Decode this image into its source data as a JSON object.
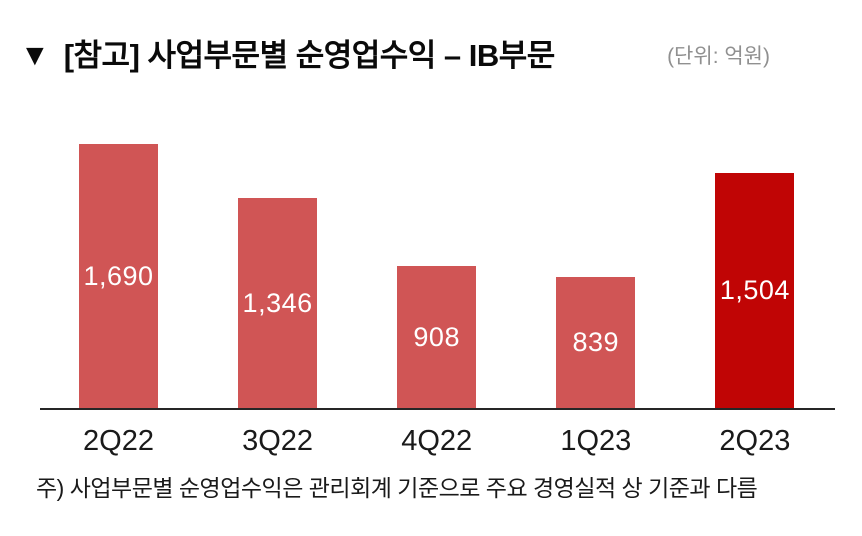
{
  "header": {
    "marker": "▼",
    "title": "[참고] 사업부문별 순영업수익 – IB부문",
    "unit_label": "(단위: 억원)"
  },
  "chart_data": {
    "type": "bar",
    "title": "[참고] 사업부문별 순영업수익 – IB부문",
    "unit": "억원",
    "categories": [
      "2Q22",
      "3Q22",
      "4Q22",
      "1Q23",
      "2Q23"
    ],
    "values": [
      1690,
      1346,
      908,
      839,
      1504
    ],
    "value_labels": [
      "1,690",
      "1,346",
      "908",
      "839",
      "1,504"
    ],
    "bar_color": "#D05555",
    "highlight_color": "#C00505",
    "highlight_index": 4,
    "value_label_color": "#FFFFFF",
    "axis_color": "#262626",
    "ylim": [
      0,
      1900
    ],
    "grid": false,
    "legend": false,
    "xlabel": "",
    "ylabel": ""
  },
  "footnote": "주) 사업부문별 순영업수익은 관리회계 기준으로 주요 경영실적 상 기준과 다름"
}
